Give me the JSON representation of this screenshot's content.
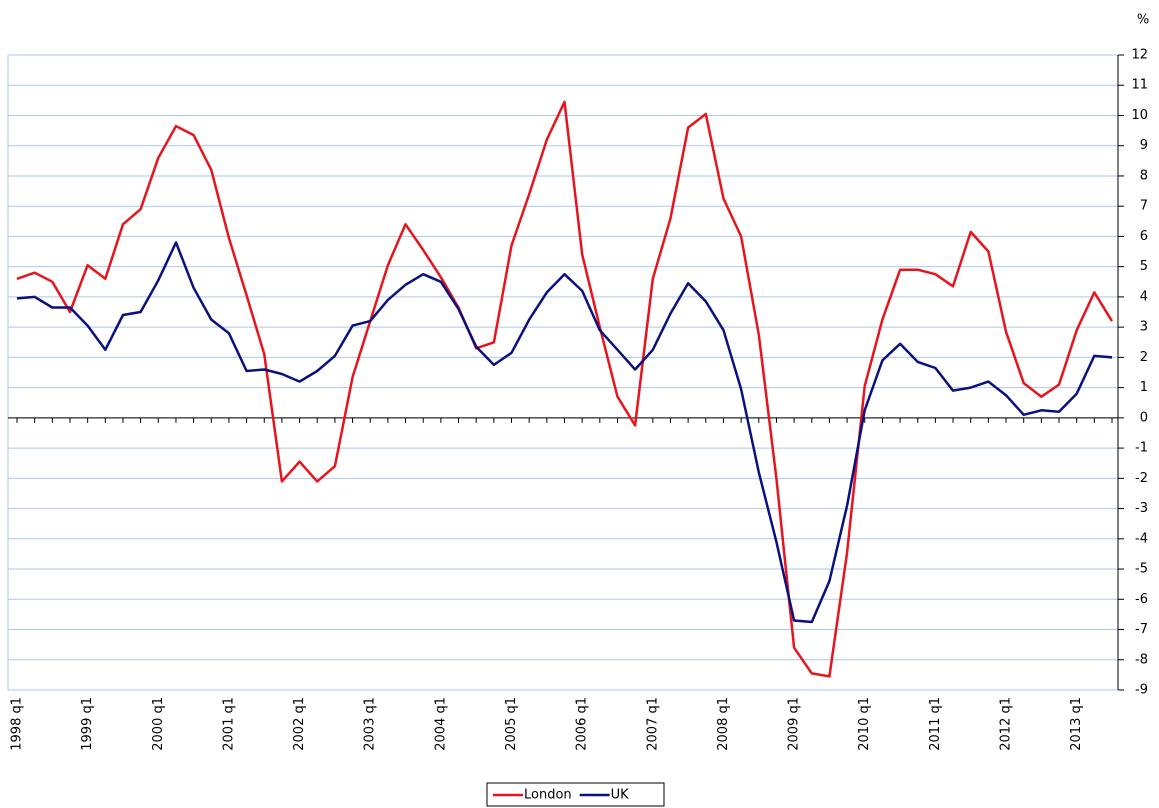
{
  "chart_data": {
    "type": "line",
    "y_unit": "%",
    "categories": [
      "1998 q1",
      null,
      null,
      null,
      "1999 q1",
      null,
      null,
      null,
      "2000 q1",
      null,
      null,
      null,
      "2001 q1",
      null,
      null,
      null,
      "2002 q1",
      null,
      null,
      null,
      "2003 q1",
      null,
      null,
      null,
      "2004 q1",
      null,
      null,
      null,
      "2005 q1",
      null,
      null,
      null,
      "2006 q1",
      null,
      null,
      null,
      "2007 q1",
      null,
      null,
      null,
      "2008 q1",
      null,
      null,
      null,
      "2009 q1",
      null,
      null,
      null,
      "2010 q1",
      null,
      null,
      null,
      "2011 q1",
      null,
      null,
      null,
      "2012 q1",
      null,
      null,
      null,
      "2013 q1",
      null,
      null
    ],
    "series": [
      {
        "name": "London",
        "color": "#e8141c",
        "values": [
          4.6,
          4.8,
          4.5,
          3.5,
          5.05,
          4.6,
          6.4,
          6.9,
          8.6,
          9.65,
          9.35,
          8.2,
          5.95,
          4.05,
          2.1,
          -2.1,
          -1.45,
          -2.1,
          -1.6,
          1.35,
          3.2,
          5.05,
          6.4,
          5.55,
          4.65,
          3.65,
          2.3,
          2.5,
          5.7,
          7.4,
          9.2,
          10.45,
          5.4,
          3.0,
          0.7,
          -0.25,
          4.6,
          6.6,
          9.6,
          10.05,
          7.25,
          6.0,
          2.75,
          -2.0,
          -7.6,
          -8.45,
          -8.55,
          -4.45,
          1.05,
          3.25,
          4.9,
          4.9,
          4.75,
          4.35,
          6.15,
          5.5,
          2.85,
          1.15,
          0.7,
          1.1,
          2.9,
          4.15,
          3.2
        ]
      },
      {
        "name": "UK",
        "color": "#0a107e",
        "values": [
          3.95,
          4.0,
          3.65,
          3.65,
          3.05,
          2.25,
          3.4,
          3.5,
          4.55,
          5.8,
          4.3,
          3.25,
          2.8,
          1.55,
          1.6,
          1.45,
          1.2,
          1.55,
          2.05,
          3.05,
          3.2,
          3.9,
          4.4,
          4.75,
          4.5,
          3.6,
          2.35,
          1.75,
          2.15,
          3.25,
          4.15,
          4.75,
          4.2,
          2.9,
          2.25,
          1.6,
          2.25,
          3.45,
          4.45,
          3.85,
          2.9,
          0.95,
          -1.8,
          -4.1,
          -6.7,
          -6.75,
          -5.4,
          -2.9,
          0.25,
          1.9,
          2.45,
          1.85,
          1.65,
          0.9,
          1.0,
          1.2,
          0.75,
          0.1,
          0.25,
          0.2,
          0.8,
          2.05,
          2.0
        ]
      }
    ],
    "ylim": [
      -9,
      12
    ],
    "yticks": [
      -9,
      -8,
      -7,
      -6,
      -5,
      -4,
      -3,
      -2,
      -1,
      0,
      1,
      2,
      3,
      4,
      5,
      6,
      7,
      8,
      9,
      10,
      11,
      12
    ],
    "grid": true,
    "legend": "bottom"
  }
}
